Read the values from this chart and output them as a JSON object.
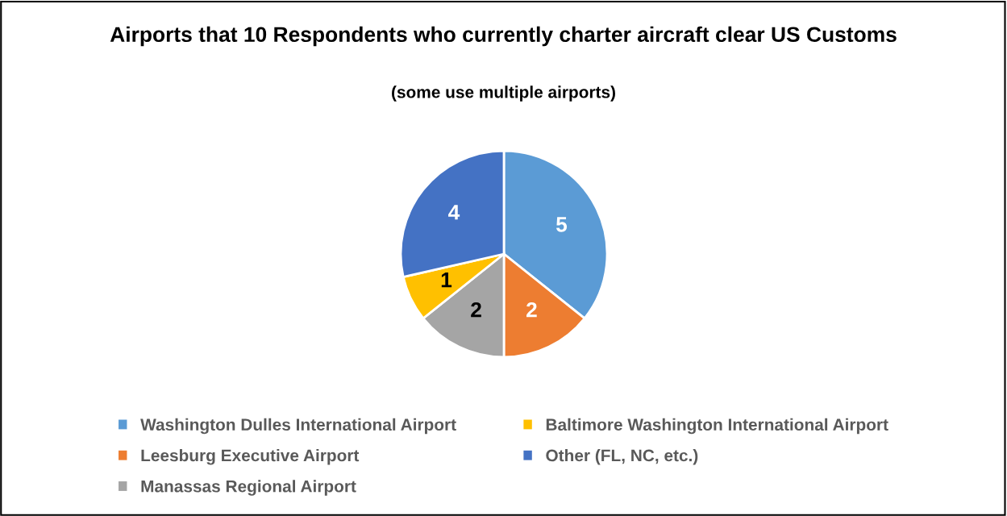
{
  "chart_data": {
    "type": "pie",
    "title": "Airports that 10 Respondents who currently charter aircraft clear US Customs",
    "subtitle": "(some use multiple airports)",
    "categories": [
      "Washington Dulles International Airport",
      "Leesburg Executive Airport",
      "Manassas Regional Airport",
      "Baltimore Washington International Airport",
      "Other (FL, NC, etc.)"
    ],
    "values": [
      5,
      2,
      2,
      1,
      4
    ],
    "colors": [
      "#5b9bd5",
      "#ed7d31",
      "#a5a5a5",
      "#ffc000",
      "#4472c4"
    ],
    "data_labels": true,
    "legend": "bottom"
  }
}
